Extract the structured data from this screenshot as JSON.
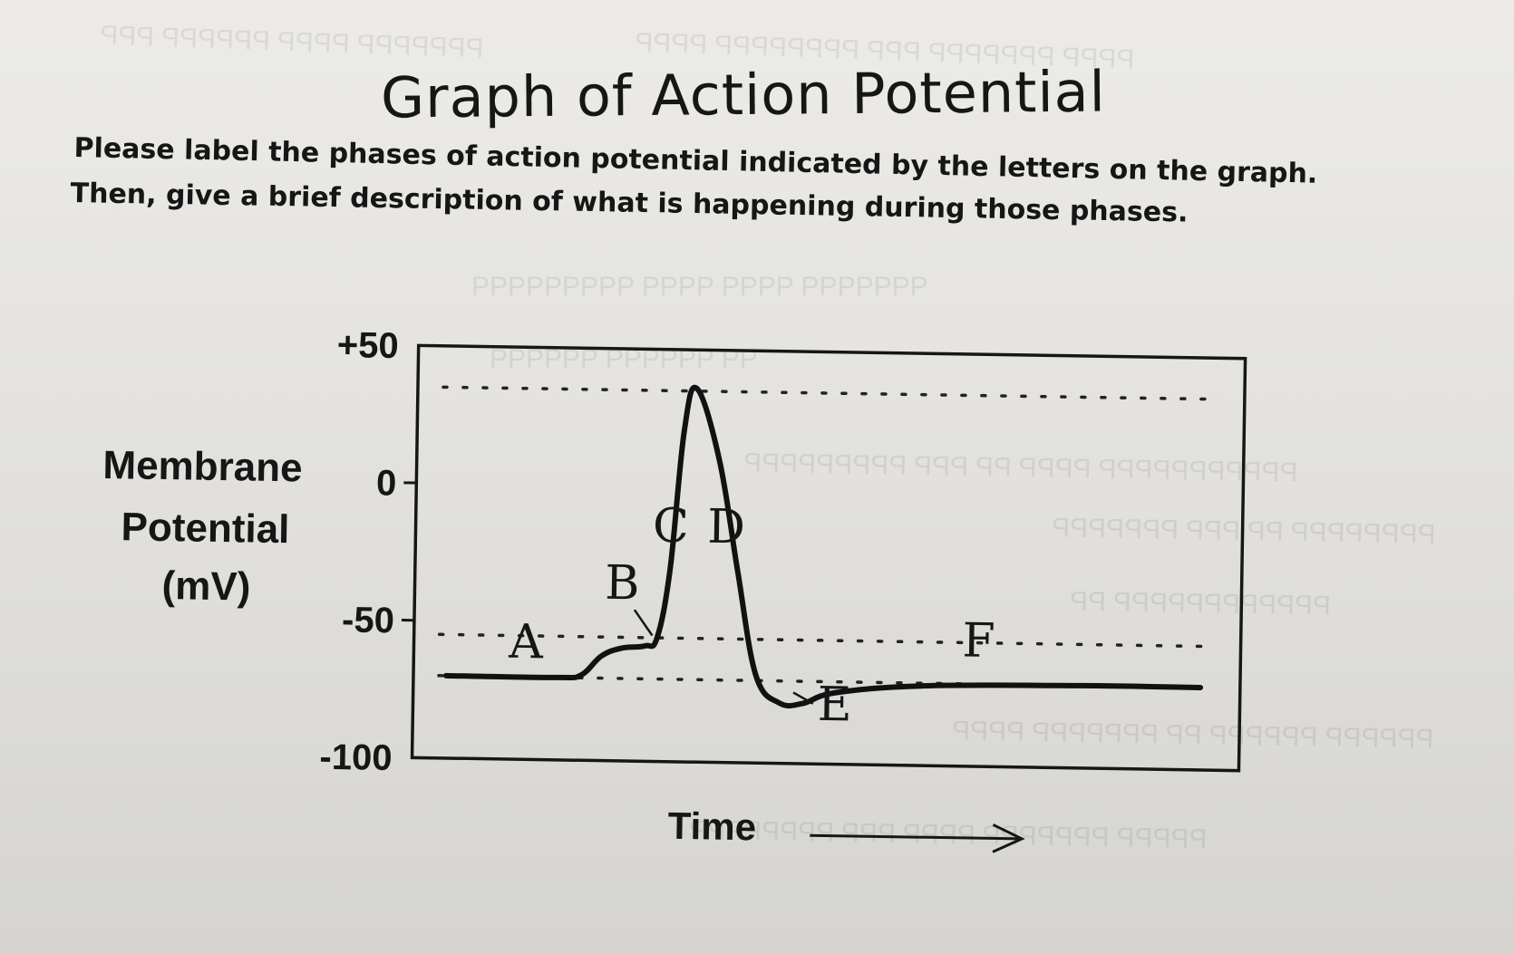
{
  "worksheet": {
    "title": "Graph of Action Potential",
    "instruction_line1": "Please label the phases of action potential indicated by the letters on the graph.",
    "instruction_line2": "Then, give a brief description of what is happening during those phases."
  },
  "chart_data": {
    "type": "line",
    "title": "Graph of Action Potential",
    "xlabel": "Time",
    "ylabel": [
      "Membrane",
      "Potential",
      "(mV)"
    ],
    "y_ticks": [
      "+50",
      "0",
      "-50",
      "-100"
    ],
    "ylim": [
      -100,
      50
    ],
    "x_numeric": false,
    "grid": false,
    "reference_lines": [
      {
        "style": "dotted",
        "value": 35
      },
      {
        "style": "dotted",
        "value": -55
      },
      {
        "style": "dotted",
        "value": -70
      }
    ],
    "series": [
      {
        "x": [
          0,
          3,
          14,
          17,
          19.5,
          22,
          25,
          26.5,
          28,
          29.5,
          31,
          34,
          36.5,
          39,
          42,
          45,
          49,
          60,
          80,
          95
        ],
        "y": [
          -70,
          -70,
          -70,
          -69,
          -62,
          -59,
          -58,
          -55,
          -30,
          20,
          36,
          10,
          -30,
          -68,
          -78,
          -78,
          -74,
          -71,
          -70,
          -70
        ]
      }
    ],
    "phase_labels": [
      {
        "label": "A",
        "x": 10,
        "y": -63
      },
      {
        "label": "B",
        "x": 22,
        "y": -41
      },
      {
        "label": "C",
        "x": 28,
        "y": -20
      },
      {
        "label": "D",
        "x": 35,
        "y": -20
      },
      {
        "label": "E",
        "x": 49,
        "y": -84
      },
      {
        "label": "F",
        "x": 67,
        "y": -60
      }
    ]
  }
}
